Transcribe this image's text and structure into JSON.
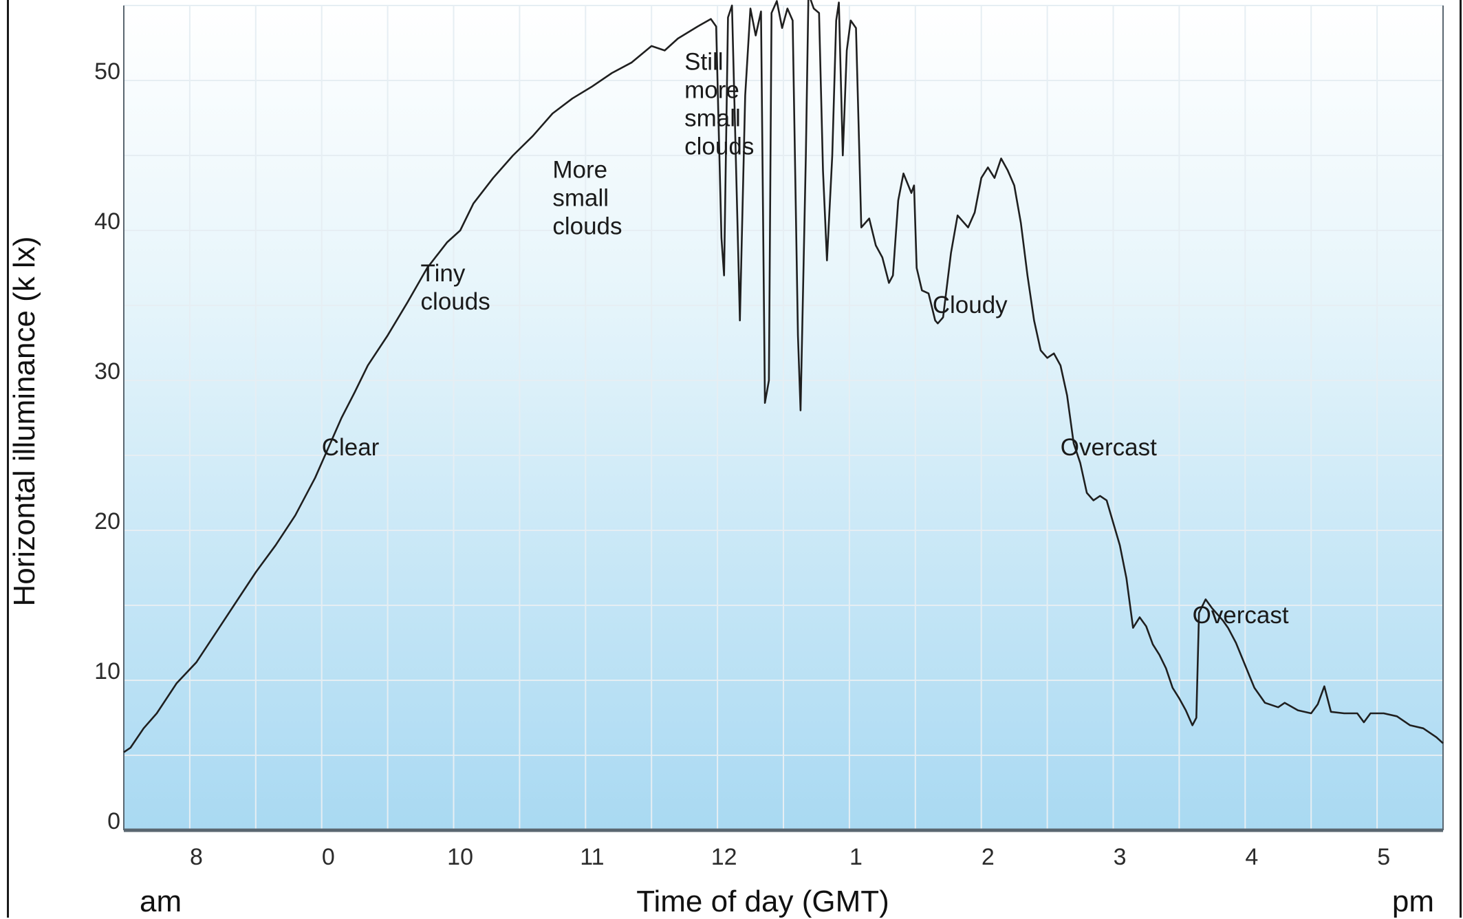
{
  "chart_data": {
    "type": "line",
    "title": "",
    "xlabel": "Time of day (GMT)",
    "ylabel": "Horizontal illuminance (k lx)",
    "x_start_label": "am",
    "x_end_label": "pm",
    "grid": true,
    "colors": {
      "line": "#1f1f1f",
      "bg_top": "#ffffff",
      "bg_bottom": "#a9d9f2",
      "grid": "#e6eef3",
      "axis": "#5a6670"
    },
    "x_ticks": [
      {
        "x": 7.5,
        "label": "8"
      },
      {
        "x": 8.5,
        "label": "0"
      },
      {
        "x": 9.5,
        "label": "10"
      },
      {
        "x": 10.5,
        "label": "11"
      },
      {
        "x": 11.5,
        "label": "12"
      },
      {
        "x": 12.5,
        "label": "1"
      },
      {
        "x": 13.5,
        "label": "2"
      },
      {
        "x": 14.5,
        "label": "3"
      },
      {
        "x": 15.5,
        "label": "4"
      },
      {
        "x": 16.5,
        "label": "5"
      }
    ],
    "xlim": [
      6.95,
      16.95
    ],
    "y_ticks": [
      {
        "y": 0,
        "label": "0"
      },
      {
        "y": 10,
        "label": "10"
      },
      {
        "y": 20,
        "label": "20"
      },
      {
        "y": 30,
        "label": "30"
      },
      {
        "y": 40,
        "label": "40"
      },
      {
        "y": 50,
        "label": "50"
      }
    ],
    "ylim": [
      0,
      55
    ],
    "annotations": [
      {
        "x": 8.45,
        "y": 25.0,
        "lines": [
          "Clear"
        ]
      },
      {
        "x": 9.2,
        "y": 36.6,
        "lines": [
          "Tiny",
          "clouds"
        ]
      },
      {
        "x": 10.2,
        "y": 43.5,
        "lines": [
          "More",
          "small",
          "clouds"
        ]
      },
      {
        "x": 11.2,
        "y": 50.7,
        "lines": [
          "Still",
          "more",
          "small",
          "clouds"
        ]
      },
      {
        "x": 13.08,
        "y": 34.5,
        "lines": [
          "Cloudy"
        ]
      },
      {
        "x": 14.05,
        "y": 25.0,
        "lines": [
          "Overcast"
        ]
      },
      {
        "x": 15.05,
        "y": 13.8,
        "lines": [
          "Overcast"
        ]
      }
    ],
    "series": [
      {
        "values": [
          [
            6.95,
            5.2
          ],
          [
            7.0,
            5.5
          ],
          [
            7.1,
            6.8
          ],
          [
            7.2,
            7.8
          ],
          [
            7.35,
            9.8
          ],
          [
            7.5,
            11.2
          ],
          [
            7.65,
            13.2
          ],
          [
            7.8,
            15.2
          ],
          [
            7.95,
            17.2
          ],
          [
            8.1,
            19.0
          ],
          [
            8.25,
            21.0
          ],
          [
            8.4,
            23.5
          ],
          [
            8.5,
            25.5
          ],
          [
            8.6,
            27.5
          ],
          [
            8.7,
            29.2
          ],
          [
            8.8,
            31.0
          ],
          [
            8.95,
            33.0
          ],
          [
            9.1,
            35.2
          ],
          [
            9.25,
            37.5
          ],
          [
            9.4,
            39.2
          ],
          [
            9.5,
            40.0
          ],
          [
            9.6,
            41.8
          ],
          [
            9.75,
            43.5
          ],
          [
            9.9,
            45.0
          ],
          [
            10.05,
            46.3
          ],
          [
            10.2,
            47.8
          ],
          [
            10.35,
            48.8
          ],
          [
            10.5,
            49.6
          ],
          [
            10.65,
            50.5
          ],
          [
            10.8,
            51.2
          ],
          [
            10.95,
            52.3
          ],
          [
            11.05,
            52.0
          ],
          [
            11.15,
            52.8
          ],
          [
            11.3,
            53.6
          ],
          [
            11.4,
            54.1
          ],
          [
            11.44,
            53.6
          ],
          [
            11.48,
            39.5
          ],
          [
            11.5,
            37.0
          ],
          [
            11.53,
            54.2
          ],
          [
            11.56,
            55.0
          ],
          [
            11.6,
            41.0
          ],
          [
            11.62,
            34.0
          ],
          [
            11.66,
            49.0
          ],
          [
            11.7,
            54.8
          ],
          [
            11.74,
            53.0
          ],
          [
            11.78,
            54.6
          ],
          [
            11.81,
            28.5
          ],
          [
            11.84,
            30.0
          ],
          [
            11.86,
            54.5
          ],
          [
            11.9,
            55.3
          ],
          [
            11.94,
            53.5
          ],
          [
            11.98,
            54.8
          ],
          [
            12.02,
            54.0
          ],
          [
            12.06,
            33.0
          ],
          [
            12.08,
            28.0
          ],
          [
            12.12,
            45.0
          ],
          [
            12.14,
            55.8
          ],
          [
            12.18,
            54.8
          ],
          [
            12.22,
            54.5
          ],
          [
            12.25,
            44.0
          ],
          [
            12.28,
            38.0
          ],
          [
            12.32,
            45.0
          ],
          [
            12.35,
            54.0
          ],
          [
            12.37,
            55.2
          ],
          [
            12.4,
            45.0
          ],
          [
            12.43,
            52.0
          ],
          [
            12.46,
            54.0
          ],
          [
            12.5,
            53.5
          ],
          [
            12.52,
            47.0
          ],
          [
            12.54,
            40.2
          ],
          [
            12.6,
            40.8
          ],
          [
            12.65,
            39.0
          ],
          [
            12.7,
            38.2
          ],
          [
            12.75,
            36.5
          ],
          [
            12.78,
            37.0
          ],
          [
            12.82,
            42.0
          ],
          [
            12.86,
            43.8
          ],
          [
            12.92,
            42.5
          ],
          [
            12.94,
            43.0
          ],
          [
            12.96,
            37.5
          ],
          [
            13.0,
            36.0
          ],
          [
            13.05,
            35.8
          ],
          [
            13.1,
            34.0
          ],
          [
            13.12,
            33.8
          ],
          [
            13.16,
            34.2
          ],
          [
            13.22,
            38.5
          ],
          [
            13.27,
            41.0
          ],
          [
            13.35,
            40.2
          ],
          [
            13.4,
            41.2
          ],
          [
            13.45,
            43.5
          ],
          [
            13.5,
            44.2
          ],
          [
            13.55,
            43.5
          ],
          [
            13.6,
            44.8
          ],
          [
            13.65,
            44.0
          ],
          [
            13.7,
            43.0
          ],
          [
            13.75,
            40.5
          ],
          [
            13.8,
            37.0
          ],
          [
            13.85,
            34.0
          ],
          [
            13.9,
            32.0
          ],
          [
            13.95,
            31.5
          ],
          [
            14.0,
            31.8
          ],
          [
            14.05,
            31.0
          ],
          [
            14.1,
            29.0
          ],
          [
            14.15,
            25.8
          ],
          [
            14.2,
            24.5
          ],
          [
            14.25,
            22.5
          ],
          [
            14.3,
            22.0
          ],
          [
            14.35,
            22.3
          ],
          [
            14.4,
            22.0
          ],
          [
            14.45,
            20.5
          ],
          [
            14.5,
            19.0
          ],
          [
            14.55,
            16.8
          ],
          [
            14.6,
            13.5
          ],
          [
            14.65,
            14.2
          ],
          [
            14.7,
            13.6
          ],
          [
            14.75,
            12.4
          ],
          [
            14.8,
            11.7
          ],
          [
            14.85,
            10.8
          ],
          [
            14.9,
            9.5
          ],
          [
            14.95,
            8.8
          ],
          [
            15.0,
            8.0
          ],
          [
            15.05,
            7.0
          ],
          [
            15.08,
            7.5
          ],
          [
            15.1,
            14.5
          ],
          [
            15.15,
            15.4
          ],
          [
            15.2,
            14.8
          ],
          [
            15.28,
            14.0
          ],
          [
            15.32,
            13.5
          ],
          [
            15.38,
            12.5
          ],
          [
            15.45,
            11.0
          ],
          [
            15.52,
            9.5
          ],
          [
            15.6,
            8.5
          ],
          [
            15.7,
            8.2
          ],
          [
            15.75,
            8.5
          ],
          [
            15.85,
            8.0
          ],
          [
            15.95,
            7.8
          ],
          [
            16.0,
            8.4
          ],
          [
            16.05,
            9.6
          ],
          [
            16.1,
            7.9
          ],
          [
            16.2,
            7.8
          ],
          [
            16.3,
            7.8
          ],
          [
            16.35,
            7.2
          ],
          [
            16.4,
            7.8
          ],
          [
            16.5,
            7.8
          ],
          [
            16.6,
            7.6
          ],
          [
            16.7,
            7.0
          ],
          [
            16.8,
            6.8
          ],
          [
            16.9,
            6.2
          ],
          [
            16.95,
            5.8
          ]
        ]
      }
    ]
  }
}
